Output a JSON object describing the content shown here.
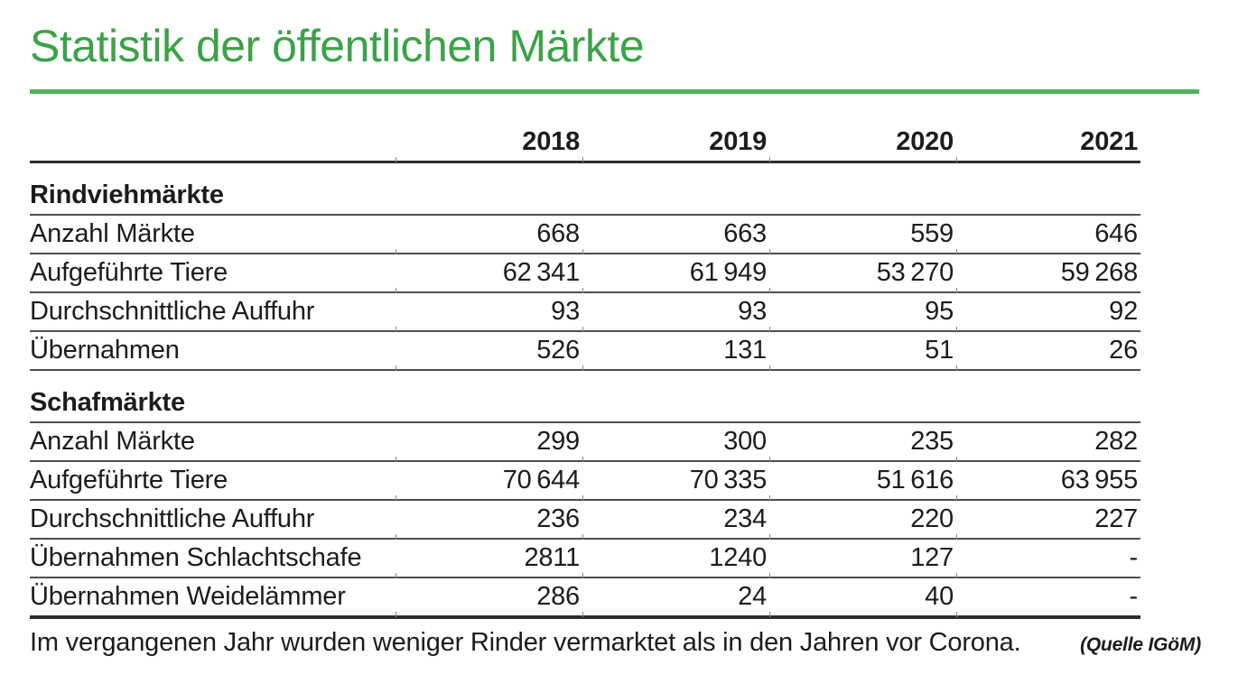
{
  "title": "Statistik der öffentlichen Märkte",
  "colors": {
    "accent_green": "#3aa347",
    "rule_green": "#52b25a",
    "text": "#1c1c1c",
    "line_dark": "#2e2e2e",
    "line_gray": "#4e4e4e"
  },
  "table": {
    "year_headers": [
      "2018",
      "2019",
      "2020",
      "2021"
    ],
    "sections": [
      {
        "name": "Rindviehmärkte",
        "rows": [
          {
            "label": "Anzahl Märkte",
            "values": [
              "668",
              "663",
              "559",
              "646"
            ]
          },
          {
            "label": "Aufgeführte Tiere",
            "values": [
              "62 341",
              "61 949",
              "53 270",
              "59 268"
            ]
          },
          {
            "label": "Durchschnittliche Auffuhr",
            "values": [
              "93",
              "93",
              "95",
              "92"
            ]
          },
          {
            "label": "Übernahmen",
            "values": [
              "526",
              "131",
              "51",
              "26"
            ]
          }
        ]
      },
      {
        "name": "Schafmärkte",
        "rows": [
          {
            "label": "Anzahl Märkte",
            "values": [
              "299",
              "300",
              "235",
              "282"
            ]
          },
          {
            "label": "Aufgeführte Tiere",
            "values": [
              "70 644",
              "70 335",
              "51 616",
              "63 955"
            ]
          },
          {
            "label": "Durchschnittliche Auffuhr",
            "values": [
              "236",
              "234",
              "220",
              "227"
            ]
          },
          {
            "label": "Übernahmen Schlachtschafe",
            "values": [
              "2811",
              "1240",
              "127",
              "-"
            ]
          },
          {
            "label": "Übernahmen Weidelämmer",
            "values": [
              "286",
              "24",
              "40",
              "-"
            ]
          }
        ]
      }
    ]
  },
  "caption": {
    "text": "Im vergangenen Jahr wurden weniger Rinder vermarktet als in den Jahren vor Corona.",
    "source": "(Quelle IGöM)"
  },
  "chart_data": {
    "type": "table",
    "title": "Statistik der öffentlichen Märkte",
    "columns": [
      "",
      "2018",
      "2019",
      "2020",
      "2021"
    ],
    "rows": [
      [
        "Rindviehmärkte",
        null,
        null,
        null,
        null
      ],
      [
        "Anzahl Märkte",
        668,
        663,
        559,
        646
      ],
      [
        "Aufgeführte Tiere",
        62341,
        61949,
        53270,
        59268
      ],
      [
        "Durchschnittliche Auffuhr",
        93,
        93,
        95,
        92
      ],
      [
        "Übernahmen",
        526,
        131,
        51,
        26
      ],
      [
        "Schafmärkte",
        null,
        null,
        null,
        null
      ],
      [
        "Anzahl Märkte",
        299,
        300,
        235,
        282
      ],
      [
        "Aufgeführte Tiere",
        70644,
        70335,
        51616,
        63955
      ],
      [
        "Durchschnittliche Auffuhr",
        236,
        234,
        220,
        227
      ],
      [
        "Übernahmen Schlachtschafe",
        2811,
        1240,
        127,
        "-"
      ],
      [
        "Übernahmen Weidelämmer",
        286,
        24,
        40,
        "-"
      ]
    ],
    "source": "(Quelle IGöM)",
    "caption": "Im vergangenen Jahr wurden weniger Rinder vermarktet als in den Jahren vor Corona."
  }
}
